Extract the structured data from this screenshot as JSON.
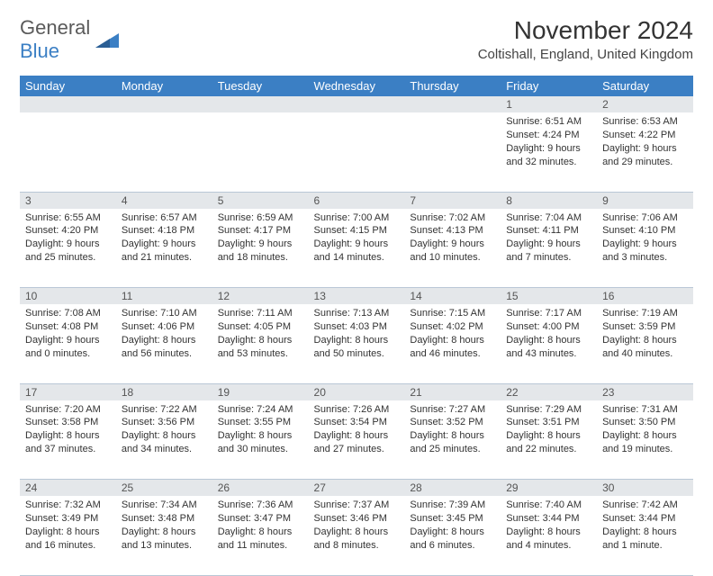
{
  "brand": {
    "line1": "General",
    "line2": "Blue",
    "logo_text_color": "#5a5a5a",
    "logo_accent": "#3b7fc4"
  },
  "header": {
    "month": "November 2024",
    "location": "Coltishall, England, United Kingdom"
  },
  "colors": {
    "header_bg": "#3b7fc4",
    "header_text": "#ffffff",
    "daynum_bg": "#e4e7ea",
    "border": "#b9c7d6",
    "body_text": "#333333"
  },
  "daysOfWeek": [
    "Sunday",
    "Monday",
    "Tuesday",
    "Wednesday",
    "Thursday",
    "Friday",
    "Saturday"
  ],
  "weeks": [
    [
      null,
      null,
      null,
      null,
      null,
      {
        "n": "1",
        "sr": "6:51 AM",
        "ss": "4:24 PM",
        "dl": "9 hours and 32 minutes."
      },
      {
        "n": "2",
        "sr": "6:53 AM",
        "ss": "4:22 PM",
        "dl": "9 hours and 29 minutes."
      }
    ],
    [
      {
        "n": "3",
        "sr": "6:55 AM",
        "ss": "4:20 PM",
        "dl": "9 hours and 25 minutes."
      },
      {
        "n": "4",
        "sr": "6:57 AM",
        "ss": "4:18 PM",
        "dl": "9 hours and 21 minutes."
      },
      {
        "n": "5",
        "sr": "6:59 AM",
        "ss": "4:17 PM",
        "dl": "9 hours and 18 minutes."
      },
      {
        "n": "6",
        "sr": "7:00 AM",
        "ss": "4:15 PM",
        "dl": "9 hours and 14 minutes."
      },
      {
        "n": "7",
        "sr": "7:02 AM",
        "ss": "4:13 PM",
        "dl": "9 hours and 10 minutes."
      },
      {
        "n": "8",
        "sr": "7:04 AM",
        "ss": "4:11 PM",
        "dl": "9 hours and 7 minutes."
      },
      {
        "n": "9",
        "sr": "7:06 AM",
        "ss": "4:10 PM",
        "dl": "9 hours and 3 minutes."
      }
    ],
    [
      {
        "n": "10",
        "sr": "7:08 AM",
        "ss": "4:08 PM",
        "dl": "9 hours and 0 minutes."
      },
      {
        "n": "11",
        "sr": "7:10 AM",
        "ss": "4:06 PM",
        "dl": "8 hours and 56 minutes."
      },
      {
        "n": "12",
        "sr": "7:11 AM",
        "ss": "4:05 PM",
        "dl": "8 hours and 53 minutes."
      },
      {
        "n": "13",
        "sr": "7:13 AM",
        "ss": "4:03 PM",
        "dl": "8 hours and 50 minutes."
      },
      {
        "n": "14",
        "sr": "7:15 AM",
        "ss": "4:02 PM",
        "dl": "8 hours and 46 minutes."
      },
      {
        "n": "15",
        "sr": "7:17 AM",
        "ss": "4:00 PM",
        "dl": "8 hours and 43 minutes."
      },
      {
        "n": "16",
        "sr": "7:19 AM",
        "ss": "3:59 PM",
        "dl": "8 hours and 40 minutes."
      }
    ],
    [
      {
        "n": "17",
        "sr": "7:20 AM",
        "ss": "3:58 PM",
        "dl": "8 hours and 37 minutes."
      },
      {
        "n": "18",
        "sr": "7:22 AM",
        "ss": "3:56 PM",
        "dl": "8 hours and 34 minutes."
      },
      {
        "n": "19",
        "sr": "7:24 AM",
        "ss": "3:55 PM",
        "dl": "8 hours and 30 minutes."
      },
      {
        "n": "20",
        "sr": "7:26 AM",
        "ss": "3:54 PM",
        "dl": "8 hours and 27 minutes."
      },
      {
        "n": "21",
        "sr": "7:27 AM",
        "ss": "3:52 PM",
        "dl": "8 hours and 25 minutes."
      },
      {
        "n": "22",
        "sr": "7:29 AM",
        "ss": "3:51 PM",
        "dl": "8 hours and 22 minutes."
      },
      {
        "n": "23",
        "sr": "7:31 AM",
        "ss": "3:50 PM",
        "dl": "8 hours and 19 minutes."
      }
    ],
    [
      {
        "n": "24",
        "sr": "7:32 AM",
        "ss": "3:49 PM",
        "dl": "8 hours and 16 minutes."
      },
      {
        "n": "25",
        "sr": "7:34 AM",
        "ss": "3:48 PM",
        "dl": "8 hours and 13 minutes."
      },
      {
        "n": "26",
        "sr": "7:36 AM",
        "ss": "3:47 PM",
        "dl": "8 hours and 11 minutes."
      },
      {
        "n": "27",
        "sr": "7:37 AM",
        "ss": "3:46 PM",
        "dl": "8 hours and 8 minutes."
      },
      {
        "n": "28",
        "sr": "7:39 AM",
        "ss": "3:45 PM",
        "dl": "8 hours and 6 minutes."
      },
      {
        "n": "29",
        "sr": "7:40 AM",
        "ss": "3:44 PM",
        "dl": "8 hours and 4 minutes."
      },
      {
        "n": "30",
        "sr": "7:42 AM",
        "ss": "3:44 PM",
        "dl": "8 hours and 1 minute."
      }
    ]
  ],
  "labels": {
    "sunrise": "Sunrise:",
    "sunset": "Sunset:",
    "daylight": "Daylight:"
  }
}
